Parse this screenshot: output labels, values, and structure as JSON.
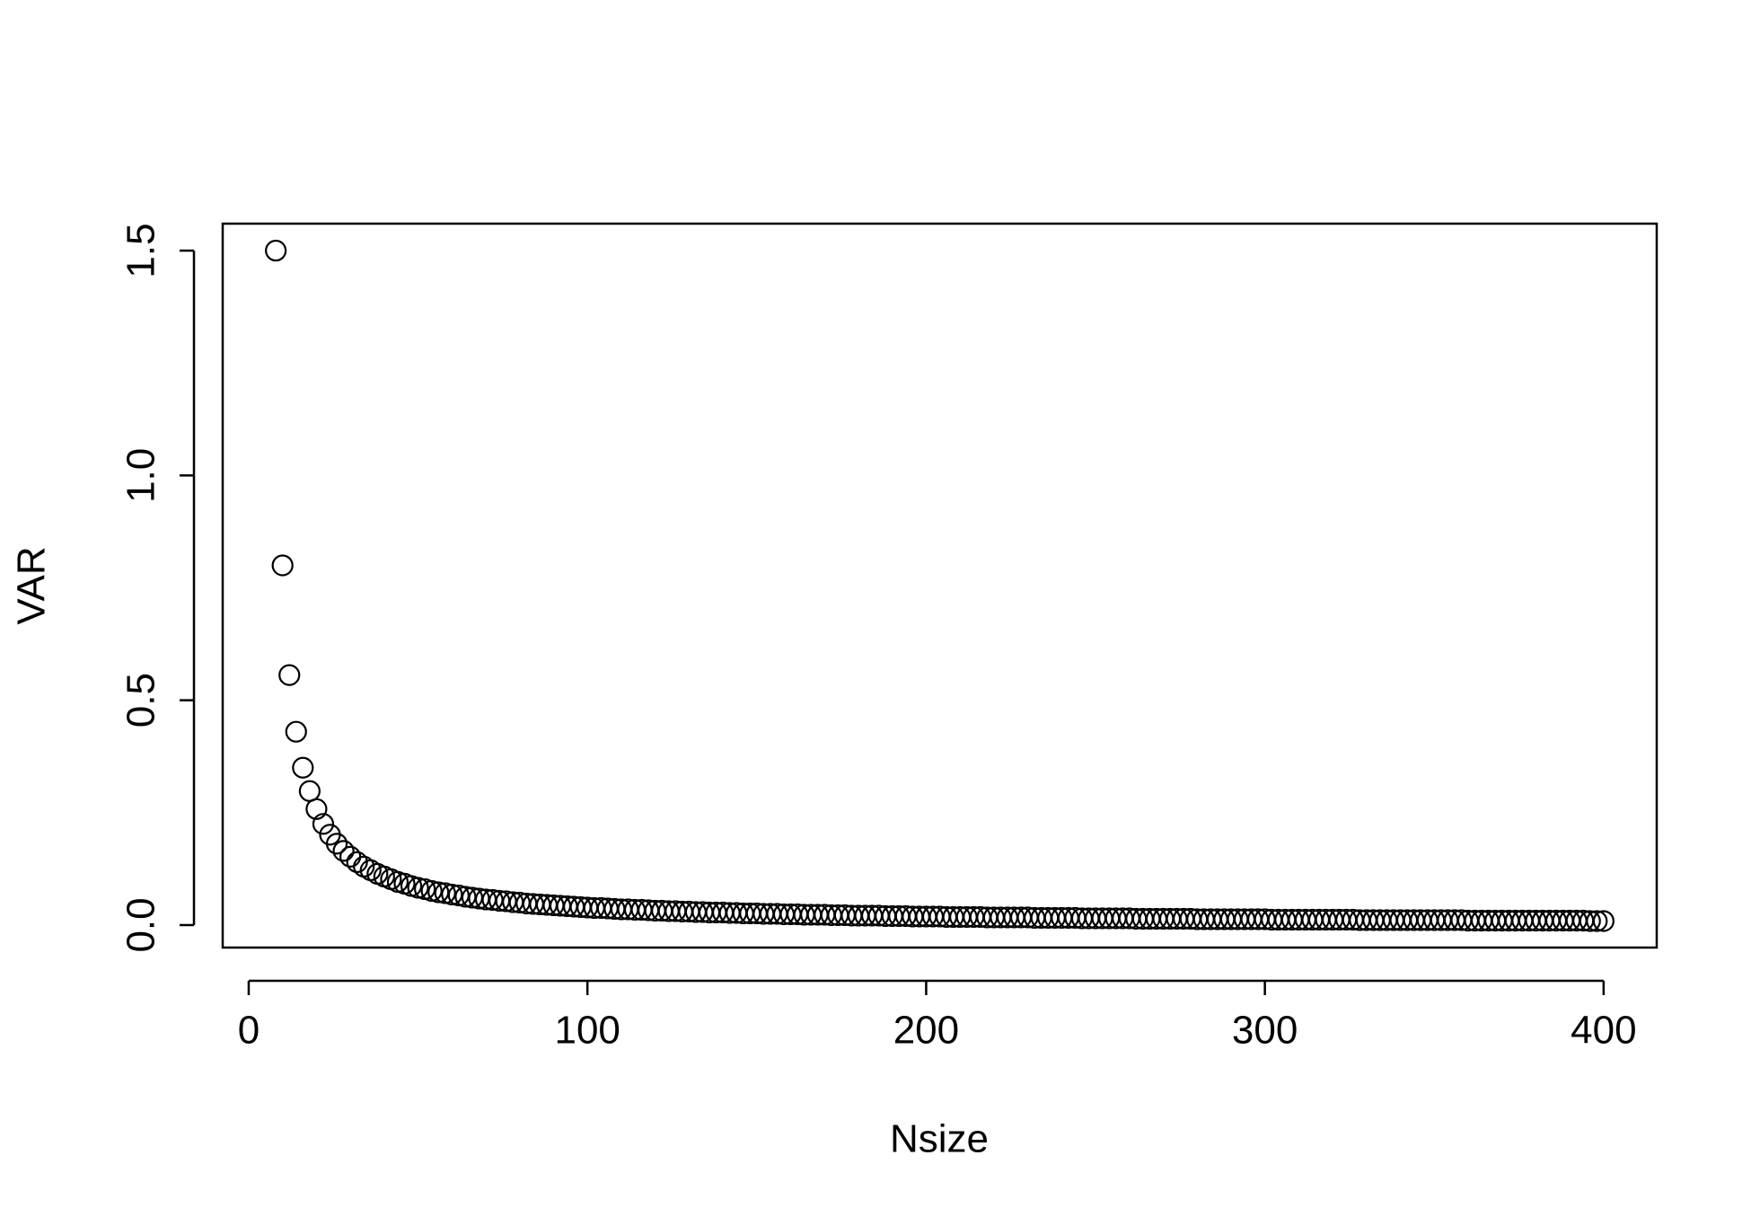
{
  "chart_data": {
    "type": "scatter",
    "x_label": "Nsize",
    "y_label": "VAR",
    "x": [
      8,
      10,
      12,
      14,
      16,
      18,
      20,
      22,
      24,
      26,
      28,
      30,
      32,
      34,
      36,
      38,
      40,
      42,
      44,
      46,
      48,
      50,
      52,
      54,
      56,
      58,
      60,
      62,
      64,
      66,
      68,
      70,
      72,
      74,
      76,
      78,
      80,
      82,
      84,
      86,
      88,
      90,
      92,
      94,
      96,
      98,
      100,
      102,
      104,
      106,
      108,
      110,
      112,
      114,
      116,
      118,
      120,
      122,
      124,
      126,
      128,
      130,
      132,
      134,
      136,
      138,
      140,
      142,
      144,
      146,
      148,
      150,
      152,
      154,
      156,
      158,
      160,
      162,
      164,
      166,
      168,
      170,
      172,
      174,
      176,
      178,
      180,
      182,
      184,
      186,
      188,
      190,
      192,
      194,
      196,
      198,
      200,
      202,
      204,
      206,
      208,
      210,
      212,
      214,
      216,
      218,
      220,
      222,
      224,
      226,
      228,
      230,
      232,
      234,
      236,
      238,
      240,
      242,
      244,
      246,
      248,
      250,
      252,
      254,
      256,
      258,
      260,
      262,
      264,
      266,
      268,
      270,
      272,
      274,
      276,
      278,
      280,
      282,
      284,
      286,
      288,
      290,
      292,
      294,
      296,
      298,
      300,
      302,
      304,
      306,
      308,
      310,
      312,
      314,
      316,
      318,
      320,
      322,
      324,
      326,
      328,
      330,
      332,
      334,
      336,
      338,
      340,
      342,
      344,
      346,
      348,
      350,
      352,
      354,
      356,
      358,
      360,
      362,
      364,
      366,
      368,
      370,
      372,
      374,
      376,
      378,
      380,
      382,
      384,
      386,
      388,
      390,
      392,
      394,
      396,
      398,
      400
    ],
    "values": [
      1.5,
      0.8,
      0.556,
      0.43,
      0.35,
      0.298,
      0.258,
      0.225,
      0.201,
      0.181,
      0.165,
      0.152,
      0.14,
      0.13,
      0.122,
      0.114,
      0.108,
      0.102,
      0.096,
      0.092,
      0.087,
      0.083,
      0.08,
      0.076,
      0.073,
      0.071,
      0.068,
      0.066,
      0.063,
      0.061,
      0.059,
      0.057,
      0.056,
      0.054,
      0.053,
      0.051,
      0.05,
      0.048,
      0.047,
      0.046,
      0.045,
      0.044,
      0.043,
      0.042,
      0.041,
      0.04,
      0.039,
      0.038,
      0.038,
      0.037,
      0.036,
      0.035,
      0.035,
      0.034,
      0.034,
      0.033,
      0.032,
      0.032,
      0.031,
      0.031,
      0.03,
      0.03,
      0.029,
      0.029,
      0.028,
      0.028,
      0.028,
      0.027,
      0.027,
      0.026,
      0.026,
      0.026,
      0.025,
      0.025,
      0.025,
      0.024,
      0.024,
      0.024,
      0.023,
      0.023,
      0.023,
      0.023,
      0.022,
      0.022,
      0.022,
      0.021,
      0.021,
      0.021,
      0.021,
      0.021,
      0.02,
      0.02,
      0.02,
      0.02,
      0.019,
      0.019,
      0.019,
      0.019,
      0.019,
      0.018,
      0.018,
      0.018,
      0.018,
      0.018,
      0.018,
      0.017,
      0.017,
      0.017,
      0.017,
      0.017,
      0.017,
      0.017,
      0.016,
      0.016,
      0.016,
      0.016,
      0.016,
      0.016,
      0.016,
      0.015,
      0.015,
      0.015,
      0.015,
      0.015,
      0.015,
      0.015,
      0.015,
      0.014,
      0.014,
      0.014,
      0.014,
      0.014,
      0.014,
      0.014,
      0.014,
      0.014,
      0.013,
      0.013,
      0.013,
      0.013,
      0.013,
      0.013,
      0.013,
      0.013,
      0.013,
      0.013,
      0.013,
      0.012,
      0.012,
      0.012,
      0.012,
      0.012,
      0.012,
      0.012,
      0.012,
      0.012,
      0.012,
      0.012,
      0.012,
      0.012,
      0.011,
      0.011,
      0.011,
      0.011,
      0.011,
      0.011,
      0.011,
      0.011,
      0.011,
      0.011,
      0.011,
      0.011,
      0.011,
      0.011,
      0.011,
      0.011,
      0.01,
      0.01,
      0.01,
      0.01,
      0.01,
      0.01,
      0.01,
      0.01,
      0.01,
      0.01,
      0.01,
      0.01,
      0.01,
      0.01,
      0.01,
      0.01,
      0.01,
      0.01,
      0.009,
      0.009,
      0.009
    ],
    "color": "#000000",
    "xlim": [
      -7.68,
      415.68
    ],
    "xticks": [
      0,
      100,
      200,
      300,
      400
    ],
    "ylim": [
      -0.05,
      1.56
    ],
    "yticks": [
      {
        "value": 0,
        "label": "0.0"
      },
      0.5,
      {
        "value": 1,
        "label": "1.0"
      },
      1.5
    ],
    "grid": false
  }
}
